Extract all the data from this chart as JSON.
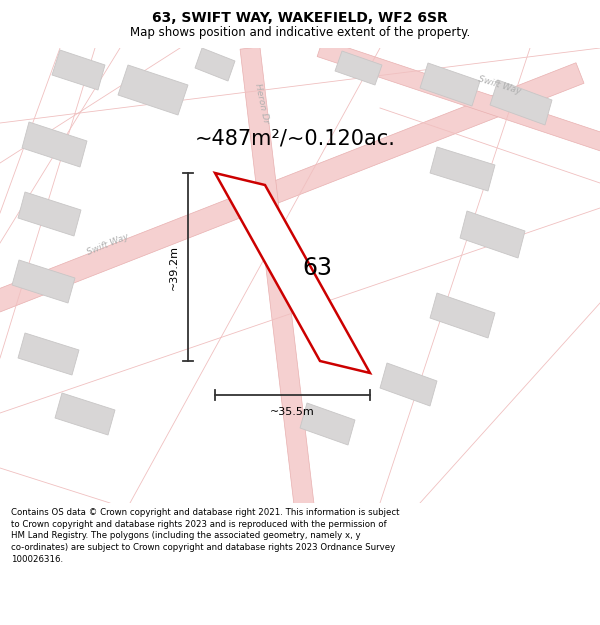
{
  "title": "63, SWIFT WAY, WAKEFIELD, WF2 6SR",
  "subtitle": "Map shows position and indicative extent of the property.",
  "area_text": "~487m²/~0.120ac.",
  "label_63": "63",
  "dim_height": "~39.2m",
  "dim_width": "~35.5m",
  "footer": "Contains OS data © Crown copyright and database right 2021. This information is subject to Crown copyright and database rights 2023 and is reproduced with the permission of HM Land Registry. The polygons (including the associated geometry, namely x, y co-ordinates) are subject to Crown copyright and database rights 2023 Ordnance Survey 100026316.",
  "bg_color": "#ffffff",
  "map_bg": "#f2f0f0",
  "road_fill": "#f5d0d0",
  "road_edge": "#e8b0b0",
  "road_thin": "#f0c0c0",
  "building_color": "#d8d6d6",
  "building_edge": "#c8c6c6",
  "plot_color": "#ffffff",
  "plot_edge": "#cc0000",
  "plot_edge_width": 1.8,
  "dim_color": "#333333",
  "street_label_color": "#b0b0b0",
  "title_fontsize": 10,
  "subtitle_fontsize": 8.5,
  "area_fontsize": 15,
  "label_fontsize": 17,
  "dim_fontsize": 8,
  "footer_fontsize": 6.2
}
